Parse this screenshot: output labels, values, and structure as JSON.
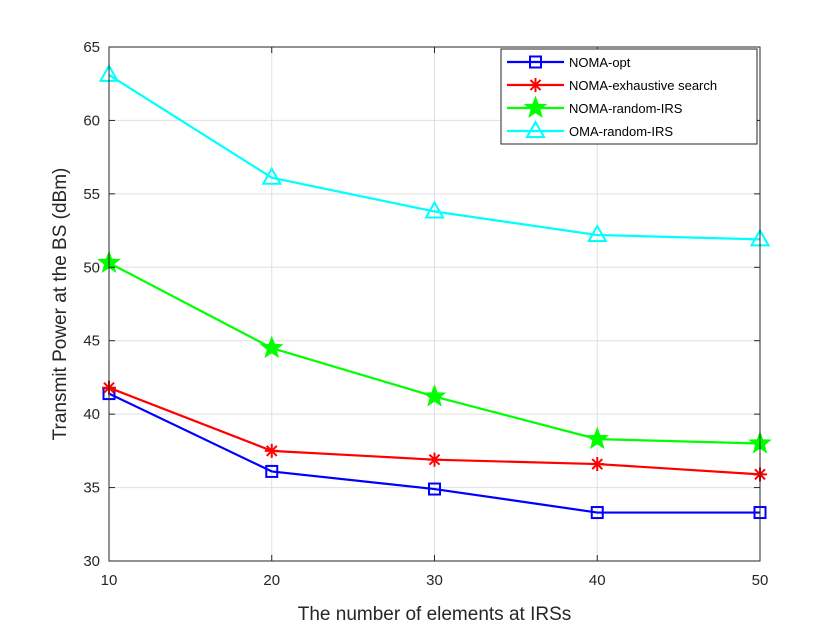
{
  "chart_data": {
    "type": "line",
    "title": "",
    "xlabel": "The number of elements at IRSs",
    "ylabel": "Transmit Power at the BS (dBm)",
    "x": [
      10,
      20,
      30,
      40,
      50
    ],
    "xlim": [
      10,
      50
    ],
    "ylim": [
      30,
      65
    ],
    "xticks": [
      "10",
      "20",
      "30",
      "40",
      "50"
    ],
    "yticks": [
      "30",
      "35",
      "40",
      "45",
      "50",
      "55",
      "60",
      "65"
    ],
    "grid": true,
    "legend_position": "top-right",
    "series": [
      {
        "name": "NOMA-opt",
        "color": "#0000ff",
        "marker": "square",
        "values": [
          41.4,
          36.1,
          34.9,
          33.3,
          33.3
        ]
      },
      {
        "name": "NOMA-exhaustive search",
        "color": "#ff0000",
        "marker": "asterisk",
        "values": [
          41.8,
          37.5,
          36.9,
          36.6,
          35.9
        ]
      },
      {
        "name": "NOMA-random-IRS",
        "color": "#00ff00",
        "marker": "star",
        "values": [
          50.3,
          44.5,
          41.2,
          38.3,
          38.0
        ]
      },
      {
        "name": "OMA-random-IRS",
        "color": "#00ffff",
        "marker": "triangle",
        "values": [
          63.1,
          56.1,
          53.8,
          52.2,
          51.9
        ]
      }
    ]
  }
}
